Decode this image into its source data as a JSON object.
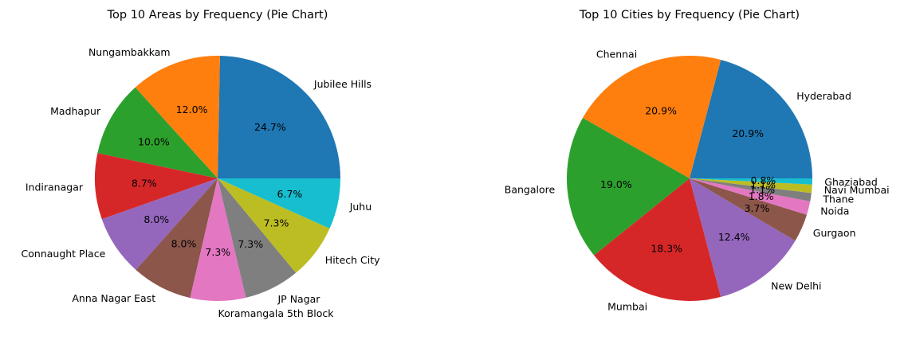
{
  "chart_data": [
    {
      "type": "pie",
      "title": "Top 10 Areas by Frequency (Pie Chart)",
      "labels": [
        "Jubilee Hills",
        "Nungambakkam",
        "Madhapur",
        "Indiranagar",
        "Connaught Place",
        "Anna Nagar East",
        "Koramangala 5th Block",
        "JP Nagar",
        "Hitech City",
        "Juhu"
      ],
      "values": [
        24.7,
        12.0,
        10.0,
        8.7,
        8.0,
        8.0,
        7.3,
        7.3,
        7.3,
        6.7
      ],
      "pct_labels": [
        "24.7%",
        "12.0%",
        "10.0%",
        "8.7%",
        "8.0%",
        "8.0%",
        "7.3%",
        "7.3%",
        "7.3%",
        "6.7%"
      ],
      "colors": [
        "#1f77b4",
        "#ff7f0e",
        "#2ca02c",
        "#d62728",
        "#9467bd",
        "#8c564b",
        "#e377c2",
        "#7f7f7f",
        "#bcbd22",
        "#17becf"
      ],
      "start_angle": 0,
      "direction": "counterclockwise"
    },
    {
      "type": "pie",
      "title": "Top 10 Cities by Frequency (Pie Chart)",
      "labels": [
        "Hyderabad",
        "Chennai",
        "Bangalore",
        "Mumbai",
        "New Delhi",
        "Gurgaon",
        "Noida",
        "Thane",
        "Navi Mumbai",
        "Ghaziabad"
      ],
      "values": [
        20.9,
        20.9,
        19.0,
        18.3,
        12.4,
        3.7,
        1.8,
        1.1,
        1.1,
        0.8
      ],
      "pct_labels": [
        "20.9%",
        "20.9%",
        "19.0%",
        "18.3%",
        "12.4%",
        "3.7%",
        "1.8%",
        "1.1%",
        "1.1%",
        "0.8%"
      ],
      "colors": [
        "#1f77b4",
        "#ff7f0e",
        "#2ca02c",
        "#d62728",
        "#9467bd",
        "#8c564b",
        "#e377c2",
        "#7f7f7f",
        "#bcbd22",
        "#17becf"
      ],
      "start_angle": 0,
      "direction": "counterclockwise"
    }
  ]
}
